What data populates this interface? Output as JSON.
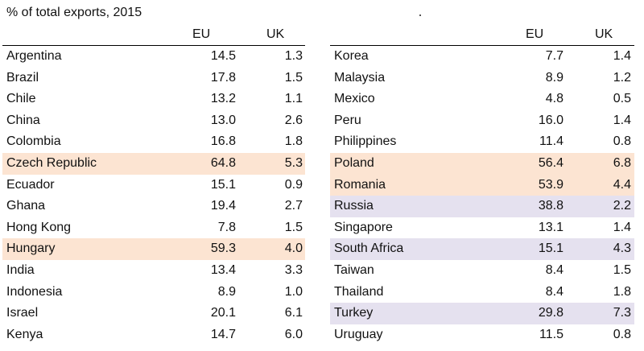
{
  "caption": "% of total exports, 2015",
  "columns": {
    "eu": "EU",
    "uk": "UK"
  },
  "colors": {
    "highlight_orange": "#fce4d2",
    "highlight_purple": "#e5e1ef"
  },
  "left_table": {
    "rows": [
      {
        "country": "Argentina",
        "eu": "14.5",
        "uk": "1.3",
        "highlight": "none"
      },
      {
        "country": "Brazil",
        "eu": "17.8",
        "uk": "1.5",
        "highlight": "none"
      },
      {
        "country": "Chile",
        "eu": "13.2",
        "uk": "1.1",
        "highlight": "none"
      },
      {
        "country": "China",
        "eu": "13.0",
        "uk": "2.6",
        "highlight": "none"
      },
      {
        "country": "Colombia",
        "eu": "16.8",
        "uk": "1.8",
        "highlight": "none"
      },
      {
        "country": "Czech Republic",
        "eu": "64.8",
        "uk": "5.3",
        "highlight": "orange"
      },
      {
        "country": "Ecuador",
        "eu": "15.1",
        "uk": "0.9",
        "highlight": "none"
      },
      {
        "country": "Ghana",
        "eu": "19.4",
        "uk": "2.7",
        "highlight": "none"
      },
      {
        "country": "Hong Kong",
        "eu": "7.8",
        "uk": "1.5",
        "highlight": "none"
      },
      {
        "country": "Hungary",
        "eu": "59.3",
        "uk": "4.0",
        "highlight": "orange"
      },
      {
        "country": "India",
        "eu": "13.4",
        "uk": "3.3",
        "highlight": "none"
      },
      {
        "country": "Indonesia",
        "eu": "8.9",
        "uk": "1.0",
        "highlight": "none"
      },
      {
        "country": "Israel",
        "eu": "20.1",
        "uk": "6.1",
        "highlight": "none"
      },
      {
        "country": "Kenya",
        "eu": "14.7",
        "uk": "6.0",
        "highlight": "none"
      }
    ]
  },
  "right_table": {
    "rows": [
      {
        "country": "Korea",
        "eu": "7.7",
        "uk": "1.4",
        "highlight": "none"
      },
      {
        "country": "Malaysia",
        "eu": "8.9",
        "uk": "1.2",
        "highlight": "none"
      },
      {
        "country": "Mexico",
        "eu": "4.8",
        "uk": "0.5",
        "highlight": "none"
      },
      {
        "country": "Peru",
        "eu": "16.0",
        "uk": "1.4",
        "highlight": "none"
      },
      {
        "country": "Philippines",
        "eu": "11.4",
        "uk": "0.8",
        "highlight": "none"
      },
      {
        "country": "Poland",
        "eu": "56.4",
        "uk": "6.8",
        "highlight": "orange"
      },
      {
        "country": "Romania",
        "eu": "53.9",
        "uk": "4.4",
        "highlight": "orange"
      },
      {
        "country": "Russia",
        "eu": "38.8",
        "uk": "2.2",
        "highlight": "purple"
      },
      {
        "country": "Singapore",
        "eu": "13.1",
        "uk": "1.4",
        "highlight": "none"
      },
      {
        "country": "South Africa",
        "eu": "15.1",
        "uk": "4.3",
        "highlight": "purple"
      },
      {
        "country": "Taiwan",
        "eu": "8.4",
        "uk": "1.5",
        "highlight": "none"
      },
      {
        "country": "Thailand",
        "eu": "8.4",
        "uk": "1.8",
        "highlight": "none"
      },
      {
        "country": "Turkey",
        "eu": "29.8",
        "uk": "7.3",
        "highlight": "purple"
      },
      {
        "country": "Uruguay",
        "eu": "11.5",
        "uk": "0.8",
        "highlight": "none"
      }
    ]
  }
}
